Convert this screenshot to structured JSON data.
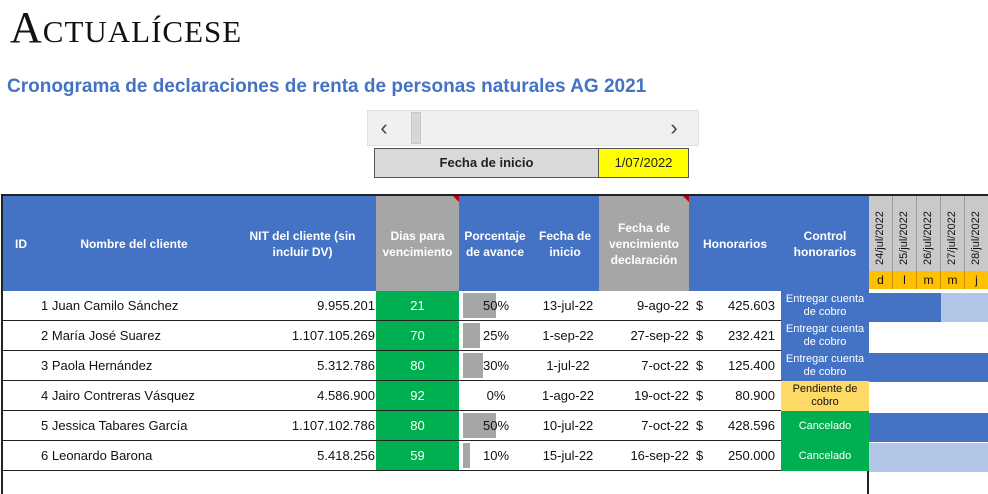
{
  "brand": {
    "logo_text": "Actualícese"
  },
  "title": "Cronograma de declaraciones de renta de personas naturales AG 2021",
  "scroll": {
    "left_arrow": "‹",
    "right_arrow": "›"
  },
  "fecha_inicio": {
    "label": "Fecha de inicio",
    "value": "1/07/2022"
  },
  "headers": {
    "id": "ID",
    "nombre": "Nombre del cliente",
    "nit": "NIT del cliente (sin incluir DV)",
    "dias": "Dias para vencimiento",
    "porcentaje": "Porcentaje de avance",
    "fecha_inicio": "Fecha de inicio",
    "fecha_venc": "Fecha de vencimiento declaración",
    "honorarios": "Honorarios",
    "control": "Control honorarios"
  },
  "rows": [
    {
      "id": "1",
      "nombre": "Juan Camilo Sánchez",
      "nit": "9.955.201",
      "dias": "21",
      "pct_text": "50%",
      "pct": 0.5,
      "inicio": "13-jul-22",
      "venc": "9-ago-22",
      "cur": "$",
      "hon": "425.603",
      "control": "Entregar cuenta de cobro",
      "control_color": "#4472c4"
    },
    {
      "id": "2",
      "nombre": "María José Suarez",
      "nit": "1.107.105.269",
      "dias": "70",
      "pct_text": "25%",
      "pct": 0.25,
      "inicio": "1-sep-22",
      "venc": "27-sep-22",
      "cur": "$",
      "hon": "232.421",
      "control": "Entregar cuenta de cobro",
      "control_color": "#4472c4"
    },
    {
      "id": "3",
      "nombre": "Paola Hernández",
      "nit": "5.312.786",
      "dias": "80",
      "pct_text": "30%",
      "pct": 0.3,
      "inicio": "1-jul-22",
      "venc": "7-oct-22",
      "cur": "$",
      "hon": "125.400",
      "control": "Entregar cuenta de cobro",
      "control_color": "#4472c4"
    },
    {
      "id": "4",
      "nombre": "Jairo Contreras Vásquez",
      "nit": "4.586.900",
      "dias": "92",
      "pct_text": "0%",
      "pct": 0,
      "inicio": "1-ago-22",
      "venc": "19-oct-22",
      "cur": "$",
      "hon": "80.900",
      "control": "Pendiente de cobro",
      "control_color": "#ffd966"
    },
    {
      "id": "5",
      "nombre": "Jessica Tabares García",
      "nit": "1.107.102.786",
      "dias": "80",
      "pct_text": "50%",
      "pct": 0.5,
      "inicio": "10-jul-22",
      "venc": "7-oct-22",
      "cur": "$",
      "hon": "428.596",
      "control": "Cancelado",
      "control_color": "#00b050"
    },
    {
      "id": "6",
      "nombre": "Leonardo Barona",
      "nit": "5.418.256",
      "dias": "59",
      "pct_text": "10%",
      "pct": 0.1,
      "inicio": "15-jul-22",
      "venc": "16-sep-22",
      "cur": "$",
      "hon": "250.000",
      "control": "Cancelado",
      "control_color": "#00b050"
    }
  ],
  "gantt": {
    "dates": [
      "24/jul/2022",
      "25/jul/2022",
      "26/jul/2022",
      "27/jul/2022",
      "28/jul/2022"
    ],
    "days": [
      "d",
      "l",
      "m",
      "m",
      "j"
    ],
    "colors": {
      "dark": "#4472c4",
      "light": "#b4c6e7",
      "empty": "#ffffff"
    },
    "rows": [
      [
        "dark",
        "dark",
        "dark",
        "light",
        "light"
      ],
      [
        "empty",
        "empty",
        "empty",
        "empty",
        "empty"
      ],
      [
        "dark",
        "dark",
        "dark",
        "dark",
        "dark"
      ],
      [
        "empty",
        "empty",
        "empty",
        "empty",
        "empty"
      ],
      [
        "dark",
        "dark",
        "dark",
        "dark",
        "dark"
      ],
      [
        "light",
        "light",
        "light",
        "light",
        "light"
      ]
    ]
  }
}
